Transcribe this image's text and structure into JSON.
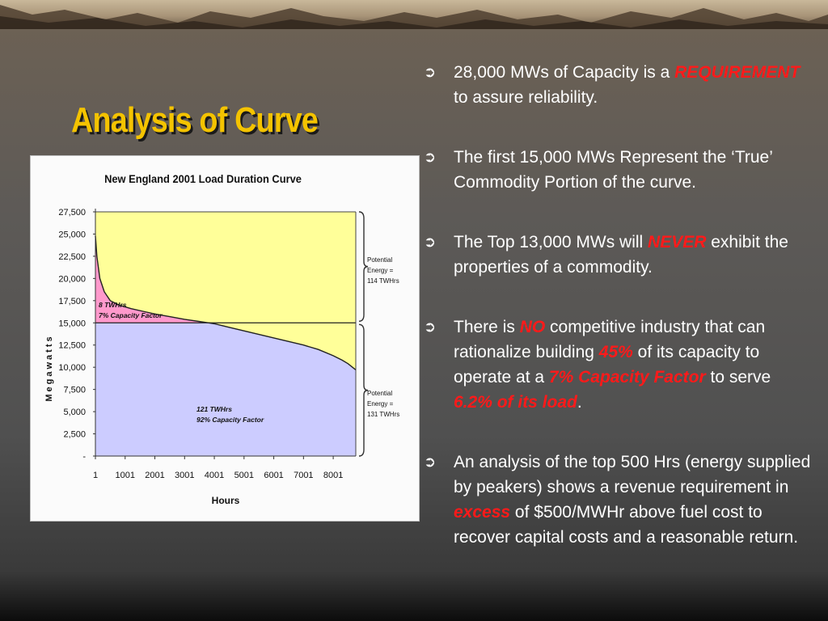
{
  "slide": {
    "title": "Analysis of Curve"
  },
  "bullets": [
    {
      "parts": [
        "28,000 MWs of Capacity is a ",
        "REQUIREMENT",
        " to assure reliability."
      ]
    },
    {
      "parts": [
        "The first 15,000 MWs Represent the ‘True’ Commodity Portion of the curve."
      ]
    },
    {
      "parts": [
        "The Top 13,000 MWs will ",
        "NEVER",
        " exhibit the properties of a commodity."
      ]
    },
    {
      "parts": [
        "There is ",
        "NO",
        " competitive industry that can rationalize building ",
        "45%",
        " of its capacity to operate at a ",
        "7% Capacity Factor",
        " to serve ",
        "6.2% of its load",
        "."
      ]
    },
    {
      "parts": [
        "An analysis of the top 500 Hrs (energy supplied by peakers) shows a revenue requirement in ",
        "excess",
        " of $500/MWHr above fuel cost to recover capital costs and a reasonable return."
      ]
    }
  ],
  "colors": {
    "title": "#f4c300",
    "highlight": "#ff1a1a",
    "upper_region": "#ffff99",
    "peak_region": "#ff99cc",
    "base_region": "#ccccff"
  },
  "chart_data": {
    "type": "area",
    "title": "New England 2001 Load Duration Curve",
    "xlabel": "Hours",
    "ylabel": "Megawatts",
    "xlim": [
      1,
      8760
    ],
    "ylim": [
      0,
      27500
    ],
    "x_ticks": [
      1,
      1001,
      2001,
      3001,
      4001,
      5001,
      6001,
      7001,
      8001
    ],
    "x_tick_labels": [
      "1",
      "1001",
      "2001",
      "3001",
      "4001",
      "5001",
      "6001",
      "7001",
      "8001"
    ],
    "y_ticks": [
      0,
      2500,
      5000,
      7500,
      10000,
      12500,
      15000,
      17500,
      20000,
      22500,
      25000,
      27500
    ],
    "y_tick_labels": [
      "-",
      "2,500",
      "5,000",
      "7,500",
      "10,000",
      "12,500",
      "15,000",
      "17,500",
      "20,000",
      "22,500",
      "25,000",
      "27,500"
    ],
    "capacity_line": 28000,
    "commodity_line": 15000,
    "curve": {
      "x": [
        1,
        50,
        150,
        300,
        500,
        800,
        1200,
        1600,
        2000,
        2500,
        3000,
        3500,
        4000,
        4500,
        5000,
        5500,
        6000,
        6500,
        7000,
        7500,
        8000,
        8300,
        8500,
        8760
      ],
      "y": [
        24800,
        22500,
        20000,
        18500,
        17500,
        17000,
        16600,
        16300,
        16000,
        15700,
        15400,
        15150,
        14900,
        14500,
        14100,
        13700,
        13300,
        12900,
        12500,
        12000,
        11300,
        10800,
        10400,
        9700
      ]
    },
    "annotations": [
      {
        "text_lines": [
          "8    TWHrs",
          "7% Capacity Factor"
        ],
        "region": "peak"
      },
      {
        "text_lines": [
          "121 TWHrs",
          "92% Capacity Factor"
        ],
        "region": "base"
      },
      {
        "text_lines": [
          "Potential",
          "Energy =",
          "114 TWHrs"
        ],
        "region": "upper-brace"
      },
      {
        "text_lines": [
          "Potential",
          "Energy =",
          "131 TWHrs"
        ],
        "region": "lower-brace"
      }
    ]
  }
}
